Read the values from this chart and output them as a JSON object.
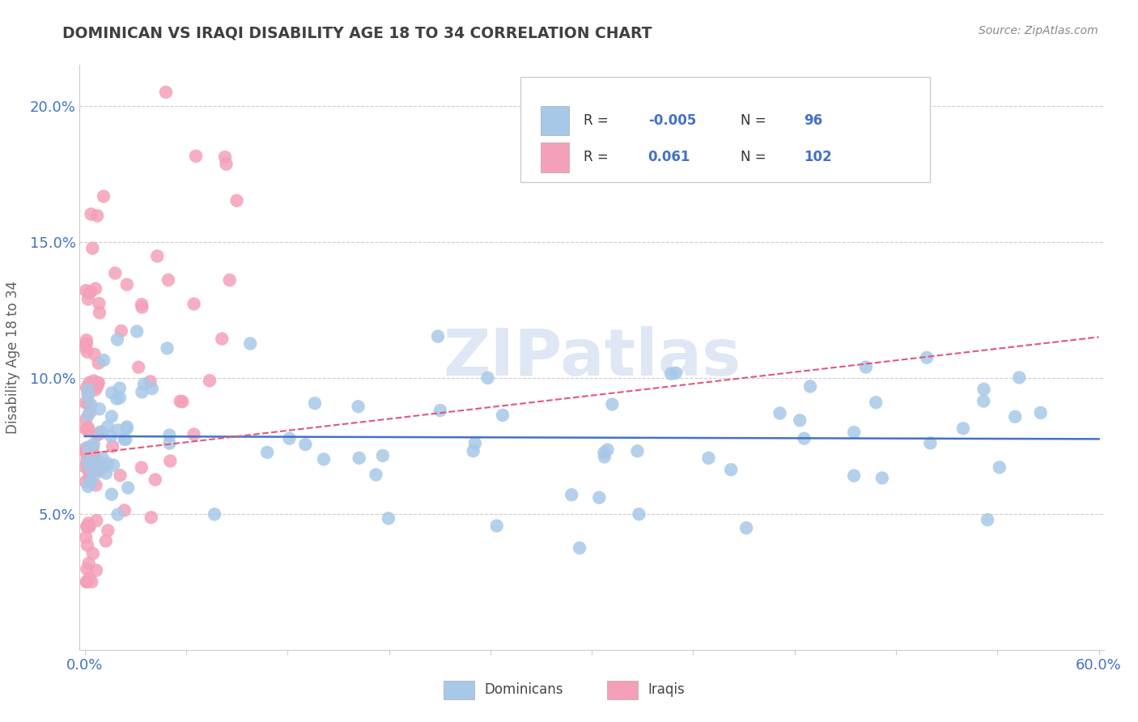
{
  "title": "DOMINICAN VS IRAQI DISABILITY AGE 18 TO 34 CORRELATION CHART",
  "source": "Source: ZipAtlas.com",
  "ylabel": "Disability Age 18 to 34",
  "dominican_color": "#a8c8e8",
  "dominican_edge_color": "#8ab0d0",
  "iraqi_color": "#f4a0b8",
  "iraqi_edge_color": "#e08098",
  "dominican_line_color": "#4472c4",
  "iraqi_line_color": "#e05878",
  "title_color": "#404040",
  "tick_color": "#4472c4",
  "source_color": "#888888",
  "legend_text_color": "#333333",
  "legend_value_color": "#4472c4",
  "watermark_color": "#c8d8ec",
  "grid_color": "#cccccc",
  "dom_R": "-0.005",
  "dom_N": "96",
  "irq_R": "0.061",
  "irq_N": "102",
  "xlim": [
    0.0,
    0.6
  ],
  "ylim": [
    0.0,
    0.215
  ],
  "y_ticks": [
    0.05,
    0.1,
    0.15,
    0.2
  ],
  "y_tick_labels": [
    "5.0%",
    "10.0%",
    "15.0%",
    "20.0%"
  ],
  "dom_trend_y": [
    0.0785,
    0.0775
  ],
  "irq_trend_y": [
    0.072,
    0.115
  ]
}
